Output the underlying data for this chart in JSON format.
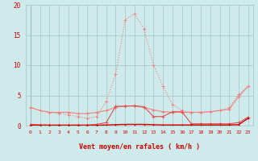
{
  "x": [
    0,
    1,
    2,
    3,
    4,
    5,
    6,
    7,
    8,
    9,
    10,
    11,
    12,
    13,
    14,
    15,
    16,
    17,
    18,
    19,
    20,
    21,
    22,
    23
  ],
  "line_rafales_dotted": [
    3.0,
    2.5,
    2.2,
    2.0,
    1.8,
    1.5,
    1.2,
    1.5,
    4.0,
    8.5,
    17.5,
    18.5,
    16.0,
    10.0,
    6.5,
    3.5,
    2.5,
    2.2,
    2.2,
    2.3,
    2.5,
    3.0,
    5.2,
    6.5
  ],
  "line_rafales_solid": [
    3.0,
    2.5,
    2.2,
    2.2,
    2.2,
    2.0,
    2.0,
    2.2,
    2.5,
    3.0,
    3.3,
    3.2,
    3.0,
    2.6,
    2.3,
    2.2,
    2.2,
    2.2,
    2.2,
    2.3,
    2.5,
    2.7,
    4.8,
    6.5
  ],
  "line_moyen": [
    0.2,
    0.15,
    0.1,
    0.1,
    0.1,
    0.1,
    0.1,
    0.2,
    0.5,
    3.2,
    3.2,
    3.3,
    3.1,
    1.5,
    1.5,
    2.3,
    2.3,
    0.3,
    0.3,
    0.3,
    0.3,
    0.3,
    0.5,
    1.4
  ],
  "line_flat": [
    0.05,
    0.05,
    0.05,
    0.05,
    0.05,
    0.05,
    0.05,
    0.05,
    0.1,
    0.15,
    0.2,
    0.2,
    0.2,
    0.15,
    0.1,
    0.1,
    0.1,
    0.1,
    0.1,
    0.1,
    0.1,
    0.1,
    0.15,
    1.2
  ],
  "color_light_pink": "#F08080",
  "color_dark_red": "#CC0000",
  "color_medium_red": "#E05050",
  "bg_color": "#CEEAEA",
  "grid_color": "#AACCCC",
  "xlabel": "Vent moyen/en rafales ( km/h )",
  "ylim": [
    0,
    20
  ],
  "xlim": [
    -0.5,
    23.5
  ],
  "yticks": [
    0,
    5,
    10,
    15,
    20
  ],
  "xticks": [
    0,
    1,
    2,
    3,
    4,
    5,
    6,
    7,
    8,
    9,
    10,
    11,
    12,
    13,
    14,
    15,
    16,
    17,
    18,
    19,
    20,
    21,
    22,
    23
  ],
  "wind_angles": [
    225,
    200,
    215,
    220,
    210,
    205,
    215,
    220,
    200,
    185,
    190,
    185,
    195,
    200,
    210,
    205,
    215,
    210,
    205,
    200,
    215,
    220,
    230,
    235
  ]
}
